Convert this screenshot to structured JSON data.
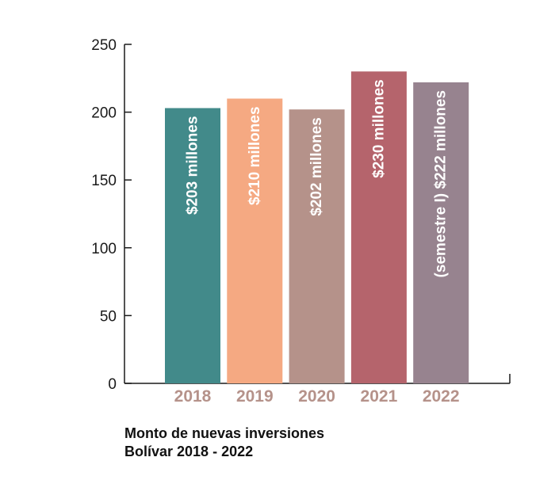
{
  "chart_data": {
    "type": "bar",
    "categories": [
      "2018",
      "2019",
      "2020",
      "2021",
      "2022"
    ],
    "values": [
      203,
      210,
      202,
      230,
      222
    ],
    "bar_labels": [
      "$203 millones",
      "$210 millones",
      "$202 millones",
      "$230 millones",
      "(semestre I) $222 millones"
    ],
    "colors": [
      "#428a8a",
      "#f5a982",
      "#b5928a",
      "#b5646c",
      "#97838f"
    ],
    "ylim": [
      0,
      250
    ],
    "yticks": [
      0,
      50,
      100,
      150,
      200,
      250
    ],
    "title": "",
    "xlabel": "",
    "ylabel": "",
    "grid": false,
    "category_label_color": "#b5928a",
    "axis_color": "#1a1a1a"
  },
  "caption": {
    "line1": "Monto de nuevas inversiones",
    "line2": "Bolívar 2018 - 2022"
  }
}
